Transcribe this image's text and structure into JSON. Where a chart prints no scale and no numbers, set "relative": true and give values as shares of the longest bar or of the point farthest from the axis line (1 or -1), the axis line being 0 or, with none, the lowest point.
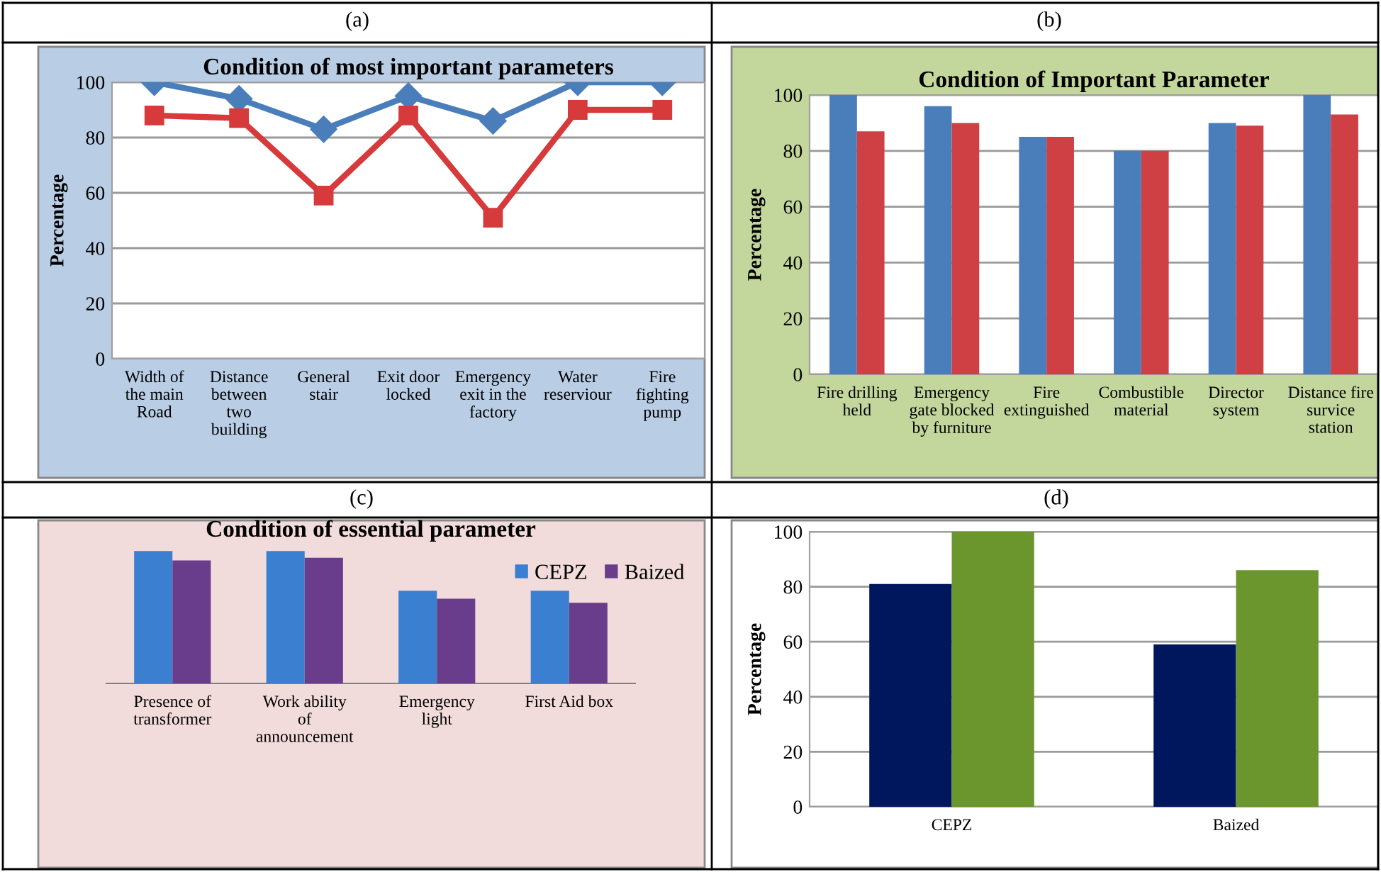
{
  "chart_data": [
    {
      "type": "line",
      "title": "Condition of most important parameters",
      "annotations": [
        "(a)"
      ],
      "ylabel": "Percentage",
      "categories": [
        "Width of\nthe main\nRoad",
        "Distance\nbetween\ntwo\nbuilding",
        "General\nstair",
        "Exit door\nlocked",
        "Emergency\nexit in the\nfactory",
        "Water\nreserviour",
        "Fire\nfighting\npump"
      ],
      "ylim": [
        0,
        100
      ],
      "yticks": [
        0,
        20,
        40,
        60,
        80,
        100
      ],
      "grid": "y",
      "series": [
        {
          "color": "#4a7ebb",
          "marker": "diamond",
          "values": [
            100,
            94,
            83,
            95,
            86,
            100,
            100
          ]
        },
        {
          "color": "#d63a3a",
          "marker": "square",
          "values": [
            88,
            87,
            59,
            88,
            51,
            90,
            90
          ]
        }
      ]
    },
    {
      "type": "bar",
      "title": "Condition of Important Parameter",
      "annotations": [
        "(b)"
      ],
      "ylabel": "Percentage",
      "categories": [
        "Fire drilling\nheld",
        "Emergency\ngate blocked\nby furniture",
        "Fire\nextinguished",
        "Combustible\nmaterial",
        "Director\nsystem",
        "Distance fire\nsurvice\nstation"
      ],
      "ylim": [
        0,
        100
      ],
      "yticks": [
        0,
        20,
        40,
        60,
        80,
        100
      ],
      "grid": "y",
      "series": [
        {
          "color": "#4a7ebb",
          "values": [
            100,
            96,
            85,
            80,
            90,
            100
          ]
        },
        {
          "color": "#cf4045",
          "values": [
            87,
            90,
            85,
            80,
            89,
            93
          ]
        }
      ]
    },
    {
      "type": "bar",
      "title": "Condition of essential parameter",
      "annotations": [
        "(c)"
      ],
      "relative": true,
      "legend": "top right",
      "categories": [
        "Presence of\ntransformer",
        "Work ability\nof\nannouncement",
        "Emergency\nlight",
        "First Aid box"
      ],
      "series": [
        {
          "name": "CEPZ",
          "color": "#3b7fd0",
          "values": [
            1,
            1,
            0.7,
            0.7
          ]
        },
        {
          "name": "Baized",
          "color": "#6a3d8c",
          "values": [
            0.93,
            0.95,
            0.64,
            0.61
          ]
        }
      ]
    },
    {
      "type": "bar",
      "annotations": [
        "(d)"
      ],
      "ylabel": "Percentage",
      "categories": [
        "CEPZ",
        "Baized"
      ],
      "ylim": [
        0,
        100
      ],
      "yticks": [
        0,
        20,
        40,
        60,
        80,
        100
      ],
      "grid": "y",
      "series": [
        {
          "color": "#00175e",
          "values": [
            81,
            59
          ]
        },
        {
          "color": "#6b962e",
          "values": [
            100,
            86
          ]
        }
      ]
    }
  ]
}
